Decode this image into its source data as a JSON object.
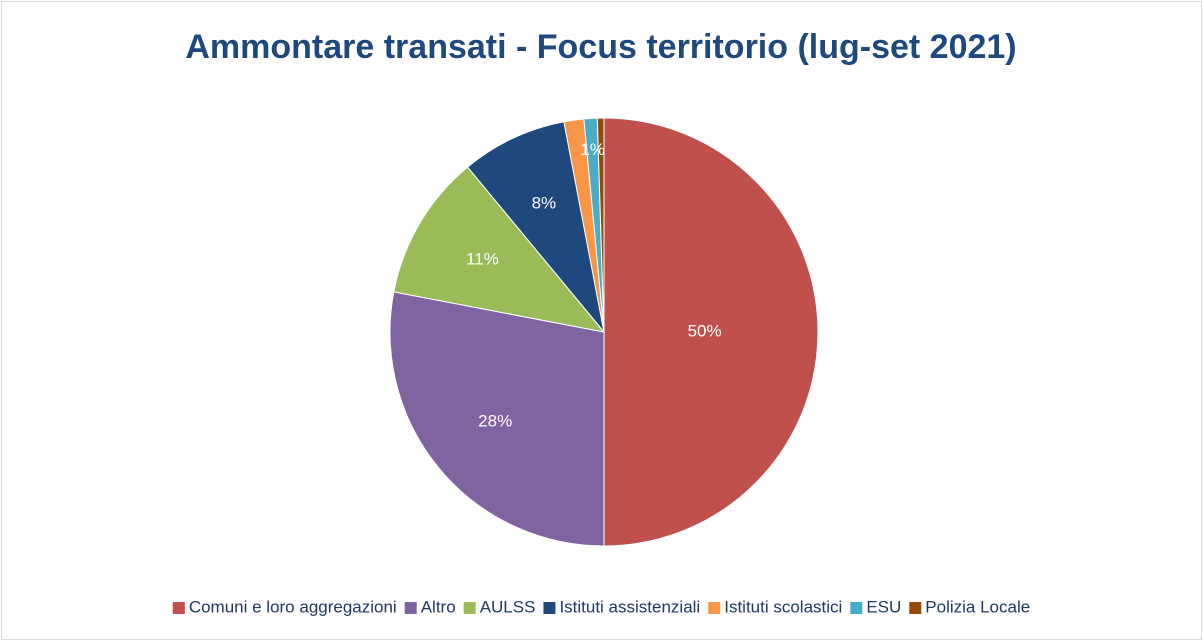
{
  "chart_data": {
    "type": "pie",
    "title": "Ammontare transati - Focus territorio (lug-set 2021)",
    "categories": [
      "Comuni e loro aggregazioni",
      "Altro",
      "AULSS",
      "Istituti assistenziali",
      "Istituti scolastici",
      "ESU",
      "Polizia Locale"
    ],
    "values": [
      50,
      28,
      11,
      8,
      1.5,
      1,
      0.5
    ],
    "value_labels": [
      "50%",
      "28%",
      "11%",
      "8%",
      null,
      "1%",
      null
    ],
    "colors": [
      "#c0504d",
      "#8064a2",
      "#9bbb59",
      "#1f497d",
      "#f79646",
      "#4bacc6",
      "#984807"
    ],
    "legend": "bottom"
  }
}
